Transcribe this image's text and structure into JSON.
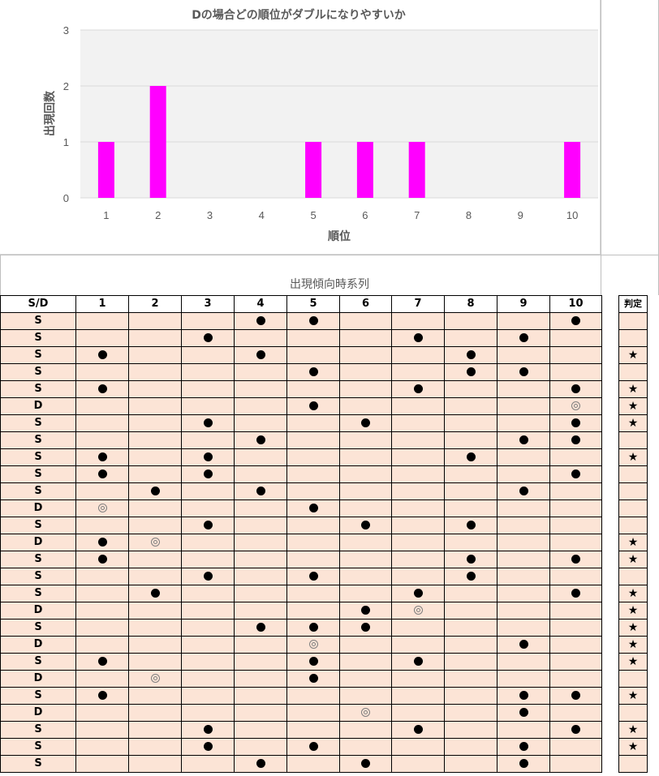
{
  "chart_data": {
    "type": "bar",
    "title": "Dの場合どの順位がダブルになりやすいか",
    "xlabel": "順位",
    "ylabel": "出現回数",
    "categories": [
      "1",
      "2",
      "3",
      "4",
      "5",
      "6",
      "7",
      "8",
      "9",
      "10"
    ],
    "values": [
      1,
      2,
      0,
      0,
      1,
      1,
      1,
      0,
      0,
      1
    ],
    "ylim": [
      0,
      3
    ],
    "yticks": [
      "0",
      "1",
      "2",
      "3"
    ],
    "bar_color": "#ff00ff",
    "plot_background": "#f2f2f2",
    "grid": true
  },
  "table_title": "出現傾向時系列",
  "table": {
    "sd_header": "S/D",
    "columns": [
      "1",
      "2",
      "3",
      "4",
      "5",
      "6",
      "7",
      "8",
      "9",
      "10"
    ],
    "judge_header": "判定",
    "rows": [
      {
        "sd": "S",
        "cells": [
          "",
          "",
          "",
          "●",
          "●",
          "",
          "",
          "",
          "",
          "●"
        ],
        "judge": ""
      },
      {
        "sd": "S",
        "cells": [
          "",
          "",
          "●",
          "",
          "",
          "",
          "●",
          "",
          "●",
          ""
        ],
        "judge": ""
      },
      {
        "sd": "S",
        "cells": [
          "●",
          "",
          "",
          "●",
          "",
          "",
          "",
          "●",
          "",
          ""
        ],
        "judge": "★"
      },
      {
        "sd": "S",
        "cells": [
          "",
          "",
          "",
          "",
          "●",
          "",
          "",
          "●",
          "●",
          ""
        ],
        "judge": ""
      },
      {
        "sd": "S",
        "cells": [
          "●",
          "",
          "",
          "",
          "",
          "",
          "●",
          "",
          "",
          "●"
        ],
        "judge": "★"
      },
      {
        "sd": "D",
        "cells": [
          "",
          "",
          "",
          "",
          "●",
          "",
          "",
          "",
          "",
          "◎"
        ],
        "judge": "★"
      },
      {
        "sd": "S",
        "cells": [
          "",
          "",
          "●",
          "",
          "",
          "●",
          "",
          "",
          "",
          "●"
        ],
        "judge": "★"
      },
      {
        "sd": "S",
        "cells": [
          "",
          "",
          "",
          "●",
          "",
          "",
          "",
          "",
          "●",
          "●"
        ],
        "judge": ""
      },
      {
        "sd": "S",
        "cells": [
          "●",
          "",
          "●",
          "",
          "",
          "",
          "",
          "●",
          "",
          ""
        ],
        "judge": "★"
      },
      {
        "sd": "S",
        "cells": [
          "●",
          "",
          "●",
          "",
          "",
          "",
          "",
          "",
          "",
          "●"
        ],
        "judge": ""
      },
      {
        "sd": "S",
        "cells": [
          "",
          "●",
          "",
          "●",
          "",
          "",
          "",
          "",
          "●",
          ""
        ],
        "judge": ""
      },
      {
        "sd": "D",
        "cells": [
          "◎",
          "",
          "",
          "",
          "●",
          "",
          "",
          "",
          "",
          ""
        ],
        "judge": ""
      },
      {
        "sd": "S",
        "cells": [
          "",
          "",
          "●",
          "",
          "",
          "●",
          "",
          "●",
          "",
          ""
        ],
        "judge": ""
      },
      {
        "sd": "D",
        "cells": [
          "●",
          "◎",
          "",
          "",
          "",
          "",
          "",
          "",
          "",
          ""
        ],
        "judge": "★"
      },
      {
        "sd": "S",
        "cells": [
          "●",
          "",
          "",
          "",
          "",
          "",
          "",
          "●",
          "",
          "●"
        ],
        "judge": "★"
      },
      {
        "sd": "S",
        "cells": [
          "",
          "",
          "●",
          "",
          "●",
          "",
          "",
          "●",
          "",
          ""
        ],
        "judge": ""
      },
      {
        "sd": "S",
        "cells": [
          "",
          "●",
          "",
          "",
          "",
          "",
          "●",
          "",
          "",
          "●"
        ],
        "judge": "★"
      },
      {
        "sd": "D",
        "cells": [
          "",
          "",
          "",
          "",
          "",
          "●",
          "◎",
          "",
          "",
          ""
        ],
        "judge": "★"
      },
      {
        "sd": "S",
        "cells": [
          "",
          "",
          "",
          "●",
          "●",
          "●",
          "",
          "",
          "",
          ""
        ],
        "judge": "★"
      },
      {
        "sd": "D",
        "cells": [
          "",
          "",
          "",
          "",
          "◎",
          "",
          "",
          "",
          "●",
          ""
        ],
        "judge": "★"
      },
      {
        "sd": "S",
        "cells": [
          "●",
          "",
          "",
          "",
          "●",
          "",
          "●",
          "",
          "",
          ""
        ],
        "judge": "★"
      },
      {
        "sd": "D",
        "cells": [
          "",
          "◎",
          "",
          "",
          "●",
          "",
          "",
          "",
          "",
          ""
        ],
        "judge": ""
      },
      {
        "sd": "S",
        "cells": [
          "●",
          "",
          "",
          "",
          "",
          "",
          "",
          "",
          "●",
          "●"
        ],
        "judge": "★"
      },
      {
        "sd": "D",
        "cells": [
          "",
          "",
          "",
          "",
          "",
          "◎",
          "",
          "",
          "●",
          ""
        ],
        "judge": ""
      },
      {
        "sd": "S",
        "cells": [
          "",
          "",
          "●",
          "",
          "",
          "",
          "●",
          "",
          "",
          "●"
        ],
        "judge": "★"
      },
      {
        "sd": "S",
        "cells": [
          "",
          "",
          "●",
          "",
          "●",
          "",
          "",
          "",
          "●",
          ""
        ],
        "judge": "★"
      },
      {
        "sd": "S",
        "cells": [
          "",
          "",
          "",
          "●",
          "",
          "●",
          "",
          "",
          "●",
          ""
        ],
        "judge": ""
      }
    ]
  }
}
